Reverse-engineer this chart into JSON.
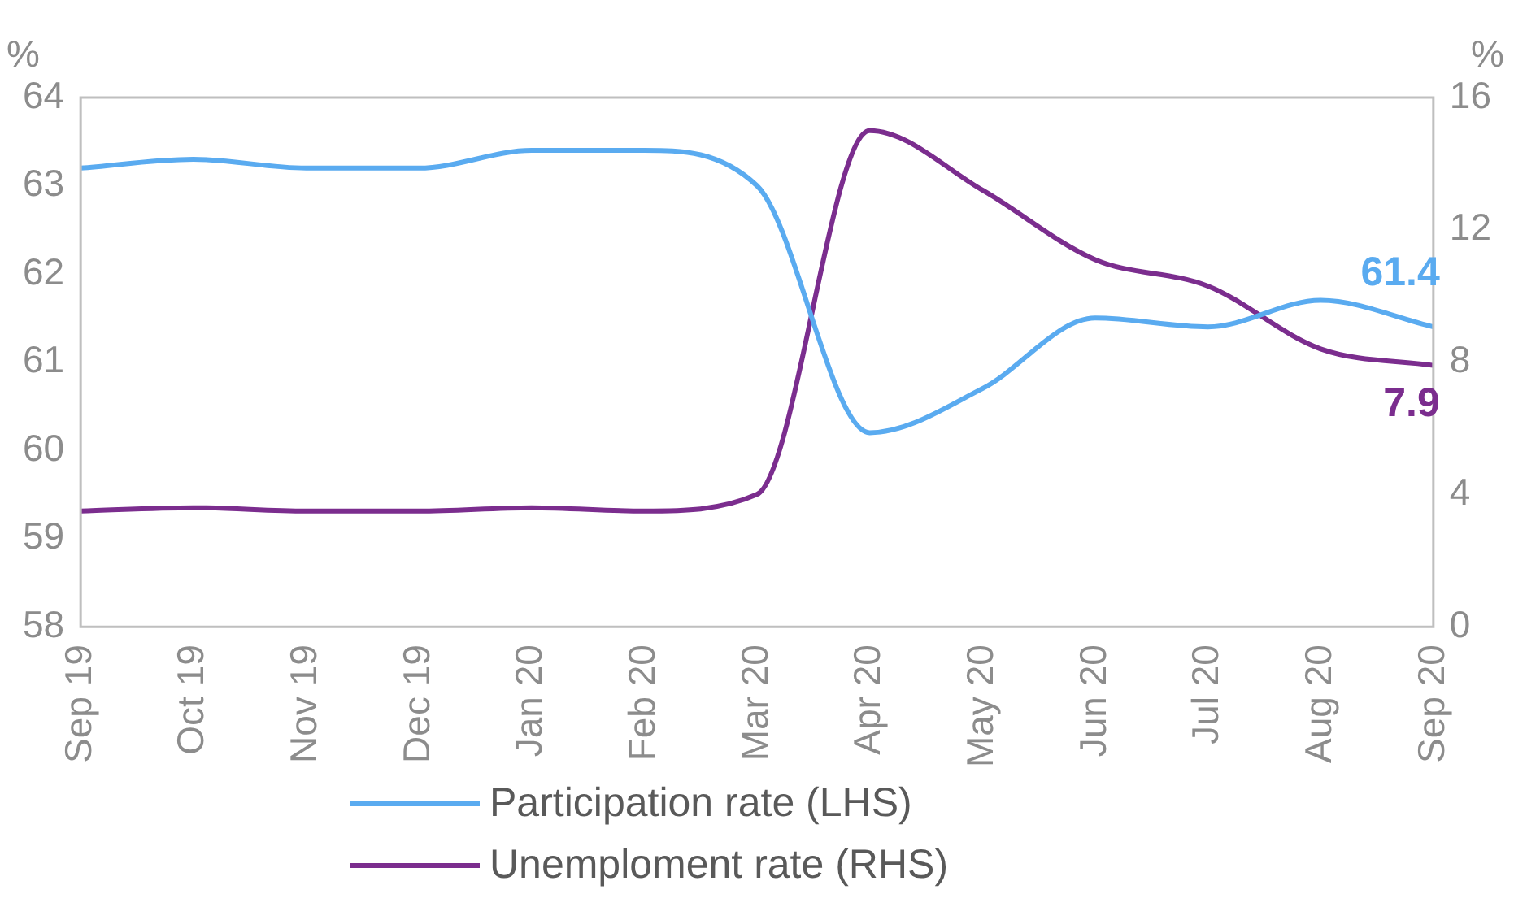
{
  "chart_data": {
    "type": "line",
    "ylabel": "%",
    "y2label": "%",
    "categories": [
      "Sep 19",
      "Oct 19",
      "Nov 19",
      "Dec 19",
      "Jan 20",
      "Feb 20",
      "Mar 20",
      "Apr 20",
      "May 20",
      "Jun 20",
      "Jul 20",
      "Aug 20",
      "Sep 20"
    ],
    "series": [
      {
        "name": "Participation rate (LHS)",
        "color": "#5aabf0",
        "values": [
          63.2,
          63.3,
          63.2,
          63.2,
          63.4,
          63.4,
          63.0,
          60.2,
          60.7,
          61.5,
          61.4,
          61.7,
          61.4
        ],
        "value_labels": [
          null,
          null,
          null,
          null,
          null,
          null,
          null,
          null,
          null,
          null,
          null,
          null,
          "61.4"
        ]
      },
      {
        "name": "Unemploment rate (RHS)",
        "color": "#7b2d8e",
        "axis": "y2",
        "values": [
          3.5,
          3.6,
          3.5,
          3.5,
          3.6,
          3.5,
          4.0,
          15.0,
          13.2,
          11.1,
          10.3,
          8.4,
          7.9
        ],
        "value_labels": [
          null,
          null,
          null,
          null,
          null,
          null,
          null,
          null,
          null,
          null,
          null,
          null,
          "7.9"
        ]
      }
    ],
    "ylim": [
      58,
      64
    ],
    "yticks": [
      58,
      59,
      60,
      61,
      62,
      63,
      64
    ],
    "y2lim": [
      0,
      16
    ],
    "y2ticks": [
      0,
      4,
      8,
      12,
      16
    ],
    "grid": false,
    "legend": "bottom",
    "marker": "none",
    "line_style": "solid"
  }
}
